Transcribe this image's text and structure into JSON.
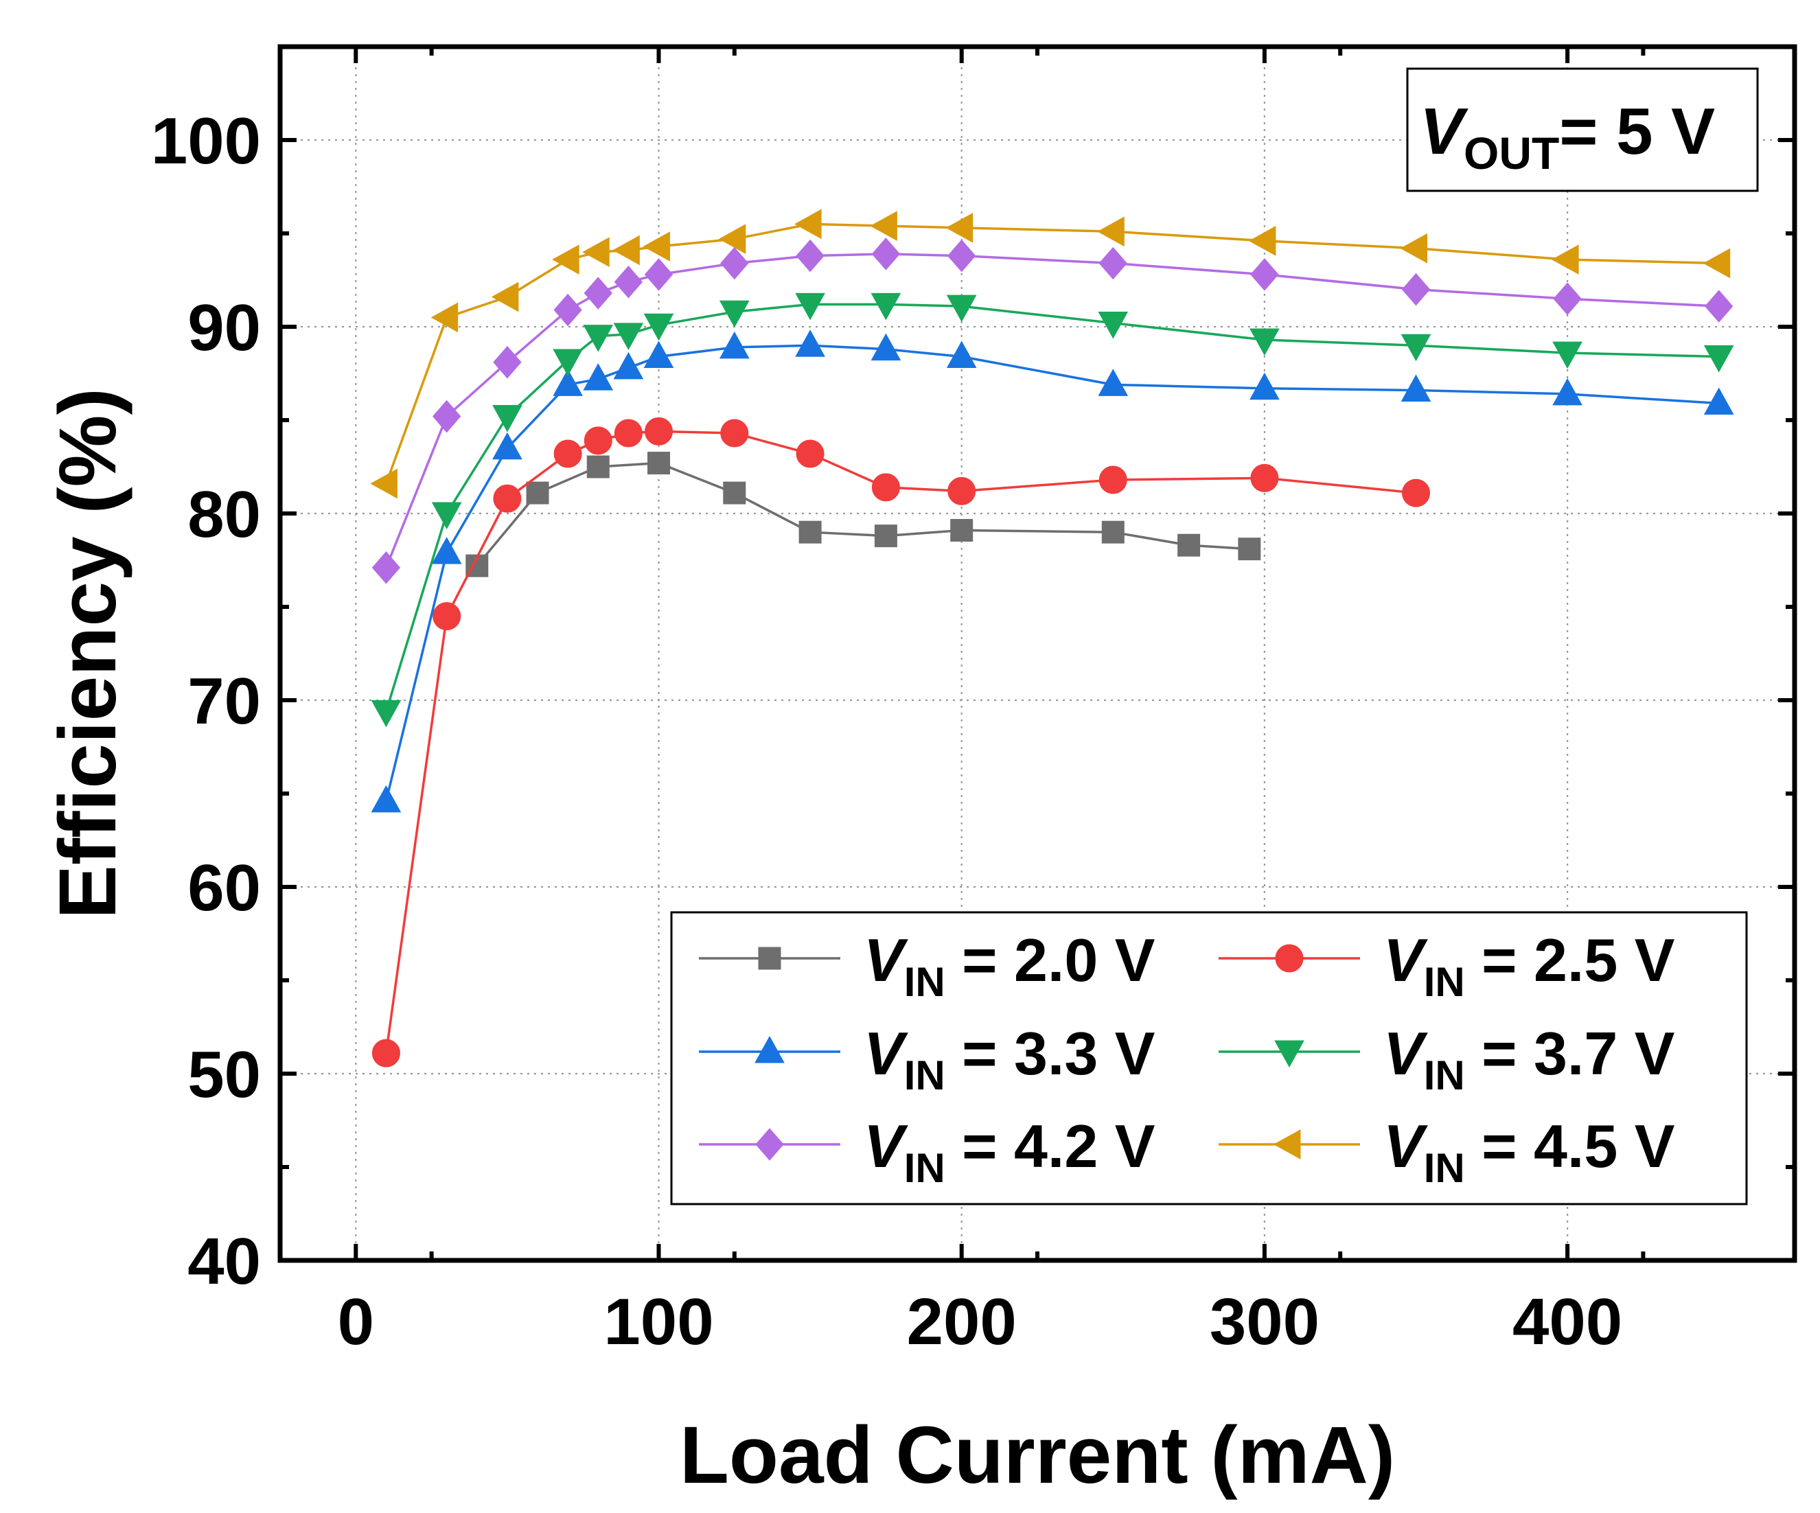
{
  "chart_data": {
    "type": "line",
    "title": "",
    "xlabel": "Load Current (mA)",
    "ylabel": "Efficiency (%)",
    "xlim": [
      -25,
      475
    ],
    "ylim": [
      40,
      105
    ],
    "xticks": [
      0,
      100,
      200,
      300,
      400
    ],
    "yticks": [
      40,
      50,
      60,
      70,
      80,
      90,
      100
    ],
    "grid": true,
    "annotation": {
      "prefix": "V",
      "sub": "OUT",
      "suffix": "= 5 V"
    },
    "legend_position": "bottom-right",
    "series": [
      {
        "name": "VIN = 2.0 V",
        "label_prefix": "V",
        "label_sub": "IN",
        "label_suffix": " = 2.0 V",
        "color": "#6e6e6e",
        "marker": "square",
        "x": [
          40,
          60,
          80,
          100,
          125,
          150,
          175,
          200,
          250,
          275,
          295
        ],
        "y": [
          77.2,
          81.1,
          82.5,
          82.7,
          81.1,
          79.0,
          78.8,
          79.1,
          79.0,
          78.3,
          78.1
        ]
      },
      {
        "name": "VIN = 2.5 V",
        "label_prefix": "V",
        "label_sub": "IN",
        "label_suffix": " = 2.5 V",
        "color": "#f03c3c",
        "marker": "circle",
        "x": [
          10,
          30,
          50,
          70,
          80,
          90,
          100,
          125,
          150,
          175,
          200,
          250,
          300,
          350
        ],
        "y": [
          51.1,
          74.5,
          80.8,
          83.2,
          83.9,
          84.3,
          84.4,
          84.3,
          83.2,
          81.4,
          81.2,
          81.8,
          81.9,
          81.1
        ]
      },
      {
        "name": "VIN = 3.3 V",
        "label_prefix": "V",
        "label_sub": "IN",
        "label_suffix": " = 3.3 V",
        "color": "#1873e0",
        "marker": "triangle-up",
        "x": [
          10,
          30,
          50,
          70,
          80,
          90,
          100,
          125,
          150,
          175,
          200,
          250,
          300,
          350,
          400,
          450
        ],
        "y": [
          64.6,
          77.9,
          83.5,
          86.9,
          87.2,
          87.8,
          88.4,
          88.9,
          89.0,
          88.8,
          88.4,
          86.9,
          86.7,
          86.6,
          86.4,
          85.9
        ]
      },
      {
        "name": "VIN = 3.7 V",
        "label_prefix": "V",
        "label_sub": "IN",
        "label_suffix": " = 3.7 V",
        "color": "#18a85a",
        "marker": "triangle-down",
        "x": [
          10,
          30,
          50,
          70,
          80,
          90,
          100,
          125,
          150,
          175,
          200,
          250,
          300,
          350,
          400,
          450
        ],
        "y": [
          69.4,
          80.0,
          85.2,
          88.2,
          89.5,
          89.6,
          90.1,
          90.8,
          91.2,
          91.2,
          91.1,
          90.2,
          89.3,
          89.0,
          88.6,
          88.4
        ]
      },
      {
        "name": "VIN = 4.2 V",
        "label_prefix": "V",
        "label_sub": "IN",
        "label_suffix": " = 4.2 V",
        "color": "#b36be3",
        "marker": "diamond",
        "x": [
          10,
          30,
          50,
          70,
          80,
          90,
          100,
          125,
          150,
          175,
          200,
          250,
          300,
          350,
          400,
          450
        ],
        "y": [
          77.1,
          85.2,
          88.1,
          90.9,
          91.8,
          92.4,
          92.8,
          93.4,
          93.8,
          93.9,
          93.8,
          93.4,
          92.8,
          92.0,
          91.5,
          91.1
        ]
      },
      {
        "name": "VIN = 4.5 V",
        "label_prefix": "V",
        "label_sub": "IN",
        "label_suffix": " = 4.5 V",
        "color": "#d99a0c",
        "marker": "triangle-left",
        "x": [
          10,
          30,
          50,
          70,
          80,
          90,
          100,
          125,
          150,
          175,
          200,
          250,
          300,
          350,
          400,
          450
        ],
        "y": [
          81.6,
          90.5,
          91.6,
          93.6,
          94.0,
          94.1,
          94.3,
          94.7,
          95.5,
          95.4,
          95.3,
          95.1,
          94.6,
          94.2,
          93.6,
          93.4
        ]
      }
    ]
  }
}
